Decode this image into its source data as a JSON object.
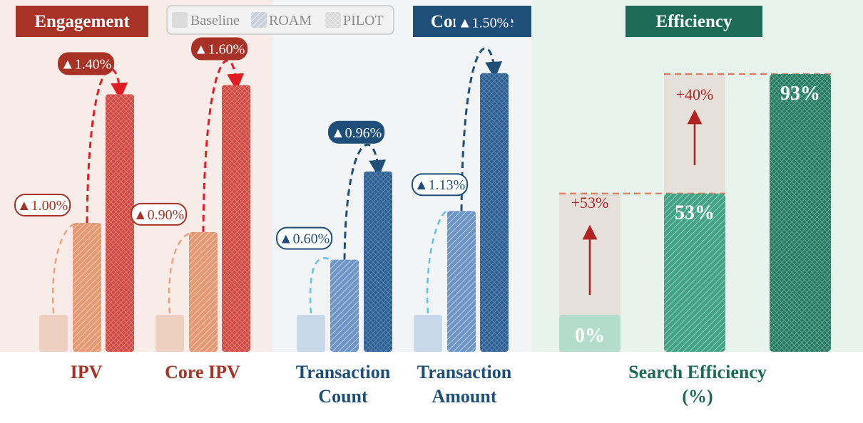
{
  "colors": {
    "engagement": "#a93226",
    "engagement_light": "#e9a07a",
    "engagement_base": "#efcfc0",
    "engagement_bg": "#f8ece8",
    "commerce": "#1f4e79",
    "commerce_mid": "#6f95c6",
    "commerce_base": "#c7d8ea",
    "commerce_bg": "#f3f4f5",
    "commerce_arrow_light": "#5bc0e8",
    "efficiency": "#1d6b57",
    "efficiency_mid": "#4aa68a",
    "efficiency_base": "#b4dccd",
    "efficiency_bg": "#e9f3ee",
    "gain_red": "#b22222",
    "track_gray": "#e6e0da"
  },
  "legend": {
    "items": [
      "Baseline",
      "ROAM",
      "PILOT"
    ]
  },
  "chart_data": [
    {
      "type": "bar",
      "panel": "Engagement",
      "categories": [
        "IPV",
        "Core IPV"
      ],
      "series": [
        {
          "name": "Baseline",
          "values": [
            1.0,
            1.0
          ]
        },
        {
          "name": "ROAM",
          "values": [
            1.01,
            1.009
          ]
        },
        {
          "name": "PILOT",
          "values": [
            1.024,
            1.025
          ]
        }
      ],
      "annotations": [
        {
          "category": "IPV",
          "series": "ROAM",
          "label": "▲1.00%"
        },
        {
          "category": "IPV",
          "series": "PILOT",
          "label": "▲1.40%"
        },
        {
          "category": "Core IPV",
          "series": "ROAM",
          "label": "▲0.90%"
        },
        {
          "category": "Core IPV",
          "series": "PILOT",
          "label": "▲1.60%"
        }
      ]
    },
    {
      "type": "bar",
      "panel": "Commerce",
      "categories": [
        "Transaction Count",
        "Transaction Amount"
      ],
      "series": [
        {
          "name": "Baseline",
          "values": [
            1.0,
            1.0
          ]
        },
        {
          "name": "ROAM",
          "values": [
            1.006,
            1.0113
          ]
        },
        {
          "name": "PILOT",
          "values": [
            1.0156,
            1.0263
          ]
        }
      ],
      "annotations": [
        {
          "category": "Transaction Count",
          "series": "ROAM",
          "label": "▲0.60%"
        },
        {
          "category": "Transaction Count",
          "series": "PILOT",
          "label": "▲0.96%"
        },
        {
          "category": "Transaction Amount",
          "series": "ROAM",
          "label": "▲1.13%"
        },
        {
          "category": "Transaction Amount",
          "series": "PILOT",
          "label": "▲1.50%"
        }
      ]
    },
    {
      "type": "bar",
      "panel": "Efficiency",
      "categories": [
        "Search Efficiency (%)"
      ],
      "series": [
        {
          "name": "Baseline",
          "values": [
            0
          ]
        },
        {
          "name": "ROAM",
          "values": [
            53
          ]
        },
        {
          "name": "PILOT",
          "values": [
            93
          ]
        }
      ],
      "value_labels": [
        "0%",
        "53%",
        "93%"
      ],
      "gains": [
        "+53%",
        "+40%"
      ]
    }
  ],
  "panels": {
    "engagement": {
      "title": "Engagement",
      "labels": [
        "IPV",
        "Core IPV"
      ]
    },
    "commerce": {
      "title": "Commerce",
      "labels": [
        [
          "Transaction",
          "Count"
        ],
        [
          "Transaction",
          "Amount"
        ]
      ]
    },
    "efficiency": {
      "title": "Efficiency",
      "labels": [
        [
          "Search Efficiency",
          "(%)"
        ]
      ]
    }
  }
}
